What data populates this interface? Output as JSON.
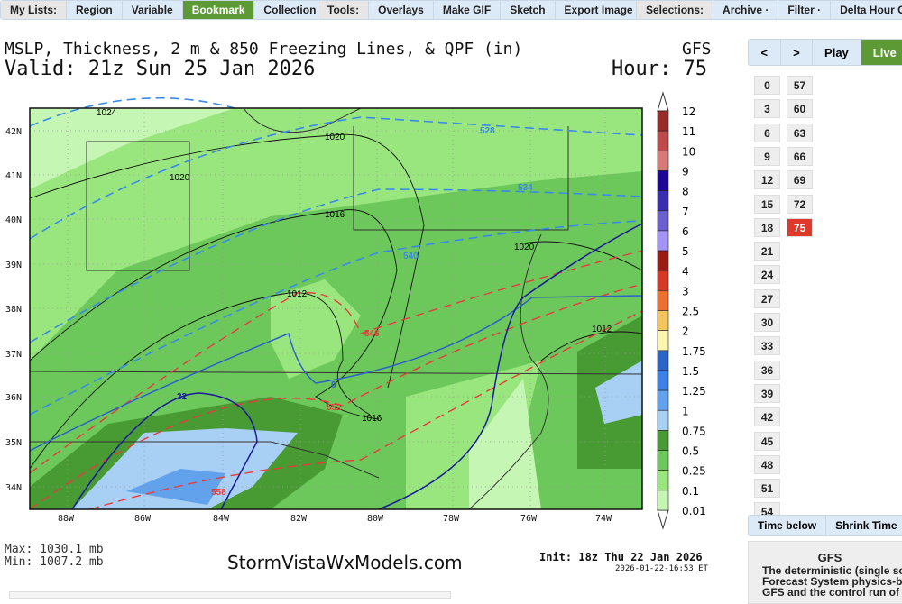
{
  "toolbar": {
    "mylists": {
      "label": "My Lists:",
      "items": [
        "Region",
        "Variable",
        "Bookmark",
        "Collection"
      ],
      "active": "Bookmark"
    },
    "tools": {
      "label": "Tools:",
      "items": [
        "Overlays",
        "Make GIF",
        "Sketch",
        "Export Image"
      ]
    },
    "selections": {
      "label": "Selections:",
      "items": [
        "Archive",
        "Filter",
        "Delta Hour C"
      ]
    }
  },
  "map": {
    "title": "MSLP, Thickness, 2 m & 850 Freezing Lines, & QPF (in)",
    "model": "GFS",
    "valid": "Valid: 21z Sun 25 Jan 2026",
    "hour": "Hour: 75",
    "lat_labels": [
      "42N",
      "41N",
      "40N",
      "39N",
      "38N",
      "37N",
      "36N",
      "35N",
      "34N"
    ],
    "lon_labels": [
      "88W",
      "86W",
      "84W",
      "82W",
      "80W",
      "78W",
      "76W",
      "74W"
    ],
    "isobar_labels": [
      "1024",
      "1020",
      "1020",
      "1016",
      "1012",
      "1020",
      "1012",
      "1016"
    ],
    "thickness_labels_blue": [
      "528",
      "534",
      "540"
    ],
    "thickness_labels_red": [
      "546",
      "552",
      "558"
    ],
    "freezing_labels": [
      "0",
      "32"
    ],
    "max": "Max: 1030.1 mb",
    "min": "Min: 1007.2 mb",
    "brand": "StormVistaWxModels.com",
    "init": "Init: 18z Thu 22 Jan 2026",
    "timestamp": "2026-01-22-16:53 ET"
  },
  "legend": {
    "labels": [
      "12",
      "11",
      "10",
      "9",
      "8",
      "7",
      "6",
      "5",
      "4",
      "3",
      "2.5",
      "2",
      "1.75",
      "1.5",
      "1.25",
      "1",
      "0.75",
      "0.5",
      "0.25",
      "0.1",
      "0.01"
    ],
    "colors": [
      "#9a2b2b",
      "#bf4a4a",
      "#d97a7a",
      "#1e0696",
      "#3a2db0",
      "#6a5ed0",
      "#a394f5",
      "#9a1c14",
      "#d63a25",
      "#ee7030",
      "#f4c460",
      "#fdf6b0",
      "#2d62c8",
      "#3d80e8",
      "#62a2ec",
      "#a8d0f4",
      "#489a32",
      "#6cc85a",
      "#9ae67e",
      "#c6f6b4"
    ]
  },
  "controls": {
    "prev": "<",
    "next": ">",
    "play": "Play",
    "live": "Live",
    "accent": "#5d9a35"
  },
  "hours": {
    "col1": [
      "0",
      "3",
      "6",
      "9",
      "12",
      "15",
      "18",
      "21",
      "24",
      "27",
      "30",
      "33",
      "36",
      "39",
      "42",
      "45",
      "48",
      "51",
      "54"
    ],
    "col2": [
      "57",
      "60",
      "63",
      "66",
      "69",
      "72",
      "75"
    ],
    "selected": "75",
    "selected_color": "#e0392b"
  },
  "time_buttons": [
    "Time below",
    "Shrink Time"
  ],
  "description": {
    "title": "GFS",
    "lines": [
      "The deterministic (single sol",
      "Forecast System physics-ba",
      "GFS and the control run of th"
    ]
  }
}
